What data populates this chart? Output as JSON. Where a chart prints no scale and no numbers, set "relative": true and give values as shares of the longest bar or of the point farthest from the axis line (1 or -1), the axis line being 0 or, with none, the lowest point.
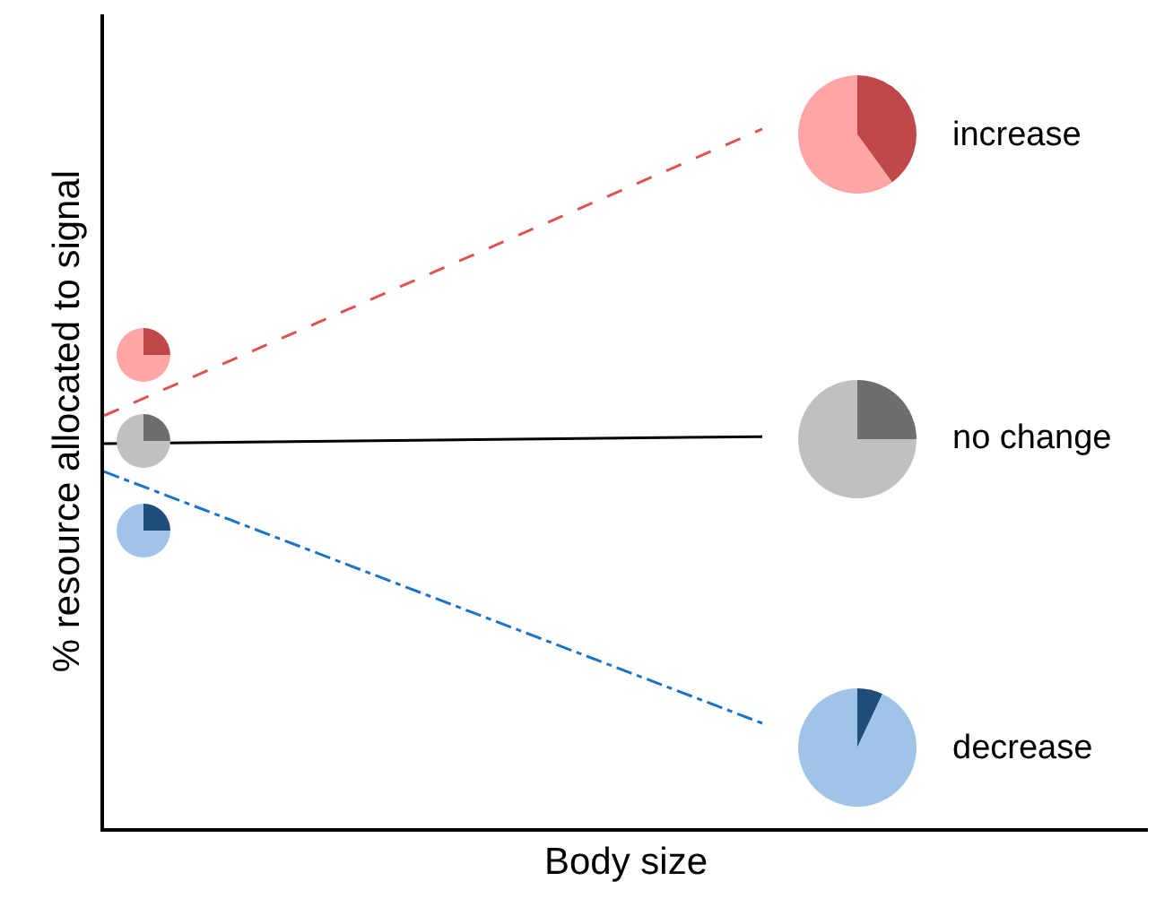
{
  "chart_data": [
    {
      "type": "line",
      "xlabel": "Body size",
      "ylabel": "% resource allocated to signal",
      "relative": true,
      "categories": [
        null,
        null
      ],
      "legend": false,
      "marker": "none",
      "series": [
        {
          "name": "increase",
          "color": "#e05252",
          "line_style": "dashed",
          "values": [
            0.59,
            1
          ]
        },
        {
          "name": "no change",
          "color": "#000000",
          "line_style": "solid",
          "values": [
            0.55,
            0.56
          ]
        },
        {
          "name": "decrease",
          "color": "#1a73c8",
          "line_style": "dashdot",
          "values": [
            0.51,
            0.15
          ]
        }
      ]
    },
    {
      "type": "pie",
      "categories": [
        null,
        null
      ],
      "values": [
        25,
        75
      ],
      "colors": [
        "#c0474a",
        "#ffa5a5"
      ]
    },
    {
      "type": "pie",
      "categories": [
        null,
        null
      ],
      "values": [
        25,
        75
      ],
      "colors": [
        "#6e6e6e",
        "#c0c0c0"
      ]
    },
    {
      "type": "pie",
      "categories": [
        null,
        null
      ],
      "values": [
        25,
        75
      ],
      "colors": [
        "#1f4e79",
        "#a0c4e8"
      ]
    },
    {
      "type": "pie",
      "categories": [
        null,
        null
      ],
      "values": [
        40,
        60
      ],
      "colors": [
        "#c0474a",
        "#ffa5a5"
      ]
    },
    {
      "type": "pie",
      "categories": [
        null,
        null
      ],
      "values": [
        25,
        75
      ],
      "colors": [
        "#6e6e6e",
        "#c0c0c0"
      ]
    },
    {
      "type": "pie",
      "categories": [
        null,
        null
      ],
      "values": [
        7,
        93
      ],
      "colors": [
        "#1f4e79",
        "#a0c4e8"
      ]
    }
  ]
}
